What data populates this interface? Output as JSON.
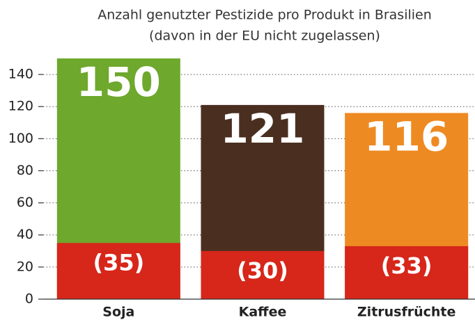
{
  "chart_data": {
    "type": "bar",
    "title": "Anzahl genutzter Pestizide pro Produkt in Brasilien",
    "subtitle": "(davon in der EU nicht zugelassen)",
    "categories": [
      "Soja",
      "Kaffee",
      "Zitrusfrüchte"
    ],
    "series": [
      {
        "colors": [
          "#6ea82c",
          "#4a2f20",
          "#ee8a22"
        ],
        "values": [
          150,
          121,
          116
        ]
      },
      {
        "color": "#d7261a",
        "values": [
          35,
          30,
          33
        ],
        "value_labels": [
          "(35)",
          "(30)",
          "(33)"
        ]
      }
    ],
    "ylim": [
      0,
      150
    ],
    "yticks": [
      0,
      20,
      40,
      60,
      80,
      100,
      120,
      140
    ],
    "grid": true
  }
}
